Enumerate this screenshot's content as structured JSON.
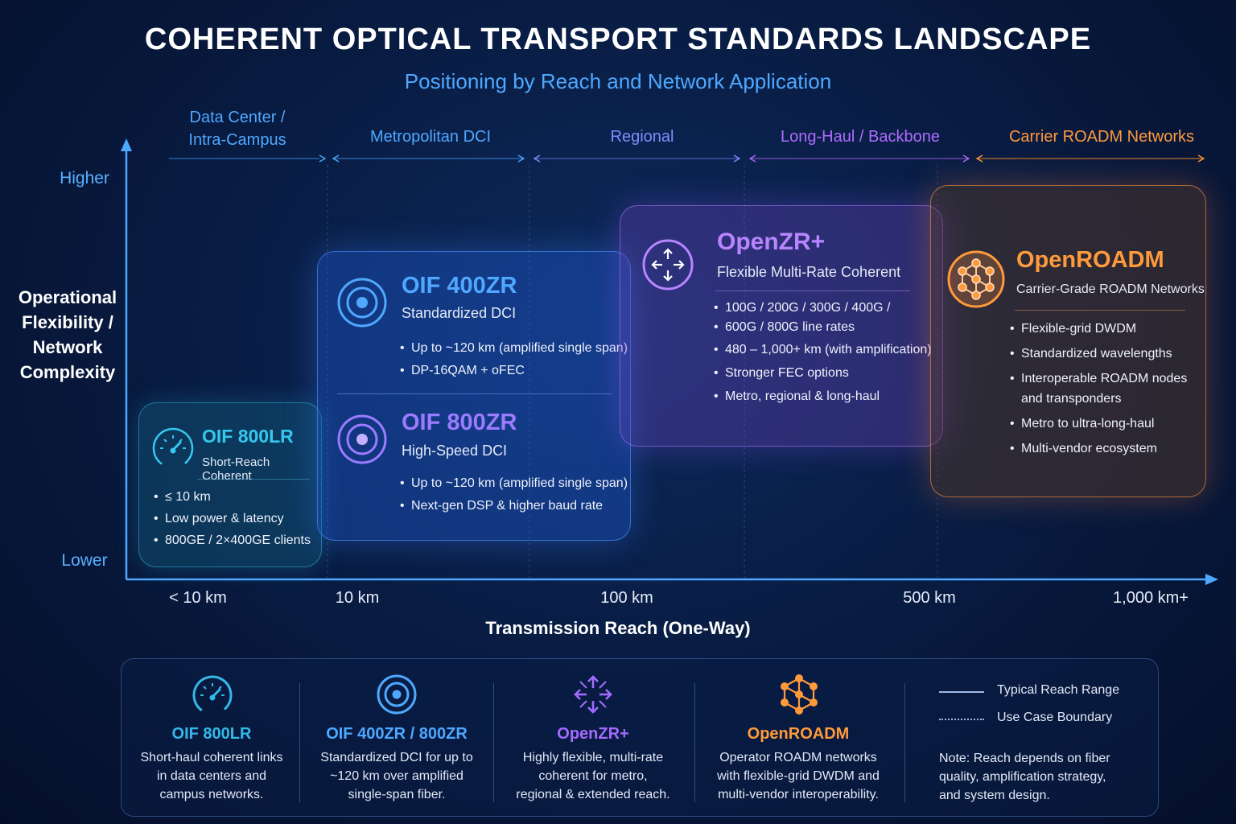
{
  "title": "COHERENT OPTICAL TRANSPORT STANDARDS LANDSCAPE",
  "subtitle": "Positioning by Reach and Network Application",
  "zones": [
    {
      "label_line1": "Data Center /",
      "label_line2": "Intra-Campus",
      "color": "#4fa8ff"
    },
    {
      "label_line1": "Metropolitan DCI",
      "label_line2": "",
      "color": "#4fa8ff"
    },
    {
      "label_line1": "Regional",
      "label_line2": "",
      "color": "#7f8cff"
    },
    {
      "label_line1": "Long-Haul / Backbone",
      "label_line2": "",
      "color": "#b06bff"
    },
    {
      "label_line1": "Carrier ROADM Networks",
      "label_line2": "",
      "color": "#ff9a3c"
    }
  ],
  "y_axis": {
    "top": "Higher",
    "bottom": "Lower",
    "title_lines": [
      "Operational",
      "Flexibility /",
      "Network",
      "Complexity"
    ]
  },
  "x_axis": {
    "ticks": [
      "< 10 km",
      "10 km",
      "100 km",
      "500 km",
      "1,000 km+"
    ],
    "title": "Transmission Reach (One-Way)"
  },
  "cards": {
    "lr": {
      "title": "OIF 800LR",
      "subtitle": "Short-Reach Coherent",
      "bullets": [
        "≤ 10 km",
        "Low power & latency",
        "800GE / 2×400GE clients"
      ],
      "color": "#35c8ee",
      "icon": "gauge-icon"
    },
    "zr400": {
      "title": "OIF 400ZR",
      "subtitle": "Standardized DCI",
      "bullets": [
        "Up to ~120 km (amplified single span)",
        "DP-16QAM + oFEC"
      ],
      "color": "#4fa8ff",
      "icon": "target-icon"
    },
    "zr800": {
      "title": "OIF 800ZR",
      "subtitle": "High-Speed DCI",
      "bullets": [
        "Up to ~120 km (amplified single span)",
        "Next-gen DSP & higher baud rate"
      ],
      "color": "#9b7bff",
      "icon": "target-icon"
    },
    "zrplus": {
      "title": "OpenZR+",
      "subtitle": "Flexible Multi-Rate Coherent",
      "bullets": [
        "100G / 200G / 300G / 400G /",
        "600G / 800G line rates",
        "480 – 1,000+ km (with amplification)",
        "Stronger FEC options",
        "Metro, regional & long-haul"
      ],
      "color": "#b885ff",
      "icon": "arrows-icon"
    },
    "roadm": {
      "title": "OpenROADM",
      "subtitle": "Carrier-Grade ROADM Networks",
      "bullets": [
        "Flexible-grid DWDM",
        "Standardized wavelengths",
        "Interoperable ROADM nodes",
        "and transponders",
        "Metro to ultra-long-haul",
        "Multi-vendor ecosystem"
      ],
      "color": "#ff9a3c",
      "icon": "network-icon"
    }
  },
  "legend": {
    "items": [
      {
        "title": "OIF 800LR",
        "desc": [
          "Short-haul coherent links",
          "in data centers and",
          "campus networks."
        ],
        "color": "#35b8e8"
      },
      {
        "title": "OIF 400ZR / 800ZR",
        "desc": [
          "Standardized DCI for up to",
          "~120 km over amplified",
          "single-span fiber."
        ],
        "color": "#4fa8ff"
      },
      {
        "title": "OpenZR+",
        "desc": [
          "Highly flexible, multi-rate",
          "coherent for metro,",
          "regional & extended reach."
        ],
        "color": "#a36bff"
      },
      {
        "title": "OpenROADM",
        "desc": [
          "Operator ROADM networks",
          "with flexible-grid DWDM and",
          "multi-vendor interoperability."
        ],
        "color": "#ff9a3c"
      }
    ],
    "typical_reach": "Typical Reach Range",
    "use_case_boundary": "Use Case Boundary",
    "note": [
      "Note: Reach depends on fiber",
      "quality, amplification strategy,",
      "and system design."
    ]
  }
}
